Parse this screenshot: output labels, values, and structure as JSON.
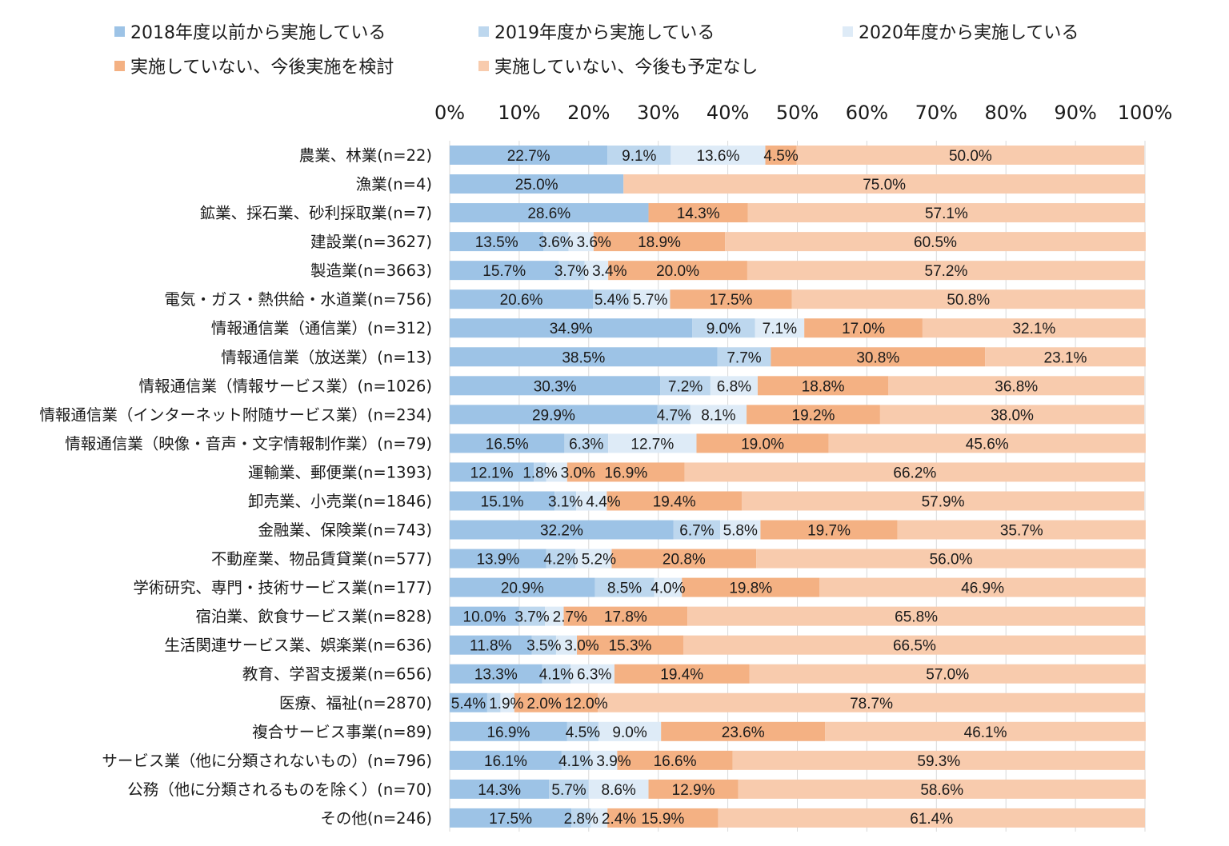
{
  "chart_data": {
    "type": "bar",
    "orientation": "horizontal",
    "stacked": true,
    "percent": true,
    "xlim": [
      0,
      100
    ],
    "grid": true,
    "legend_position": "top",
    "x_ticks": [
      "0%",
      "10%",
      "20%",
      "30%",
      "40%",
      "50%",
      "60%",
      "70%",
      "80%",
      "90%",
      "100%"
    ],
    "categories": [
      "農業、林業(n=22)",
      "漁業(n=4)",
      "鉱業、採石業、砂利採取業(n=7)",
      "建設業(n=3627)",
      "製造業(n=3663)",
      "電気・ガス・熱供給・水道業(n=756)",
      "情報通信業（通信業）(n=312)",
      "情報通信業（放送業）(n=13)",
      "情報通信業（情報サービス業）(n=1026)",
      "情報通信業（インターネット附随サービス業）(n=234)",
      "情報通信業（映像・音声・文字情報制作業）(n=79)",
      "運輸業、郵便業(n=1393)",
      "卸売業、小売業(n=1846)",
      "金融業、保険業(n=743)",
      "不動産業、物品賃貸業(n=577)",
      "学術研究、専門・技術サービス業(n=177)",
      "宿泊業、飲食サービス業(n=828)",
      "生活関連サービス業、娯楽業(n=636)",
      "教育、学習支援業(n=656)",
      "医療、福祉(n=2870)",
      "複合サービス事業(n=89)",
      "サービス業（他に分類されないもの）(n=796)",
      "公務（他に分類されるものを除く）(n=70)",
      "その他(n=246)"
    ],
    "series": [
      {
        "name": "2018年度以前から実施している",
        "color": "#9dc3e6",
        "values": [
          22.7,
          25.0,
          28.6,
          13.5,
          15.7,
          20.6,
          34.9,
          38.5,
          30.3,
          29.9,
          16.5,
          12.1,
          15.1,
          32.2,
          13.9,
          20.9,
          10.0,
          11.8,
          13.3,
          5.4,
          16.9,
          16.1,
          14.3,
          17.5
        ]
      },
      {
        "name": "2019年度から実施している",
        "color": "#bdd7ee",
        "values": [
          9.1,
          null,
          null,
          3.6,
          3.7,
          5.4,
          9.0,
          7.7,
          7.2,
          4.7,
          6.3,
          1.8,
          3.1,
          6.7,
          4.2,
          8.5,
          3.7,
          3.5,
          4.1,
          1.9,
          4.5,
          4.1,
          5.7,
          2.8
        ]
      },
      {
        "name": "2020年度から実施している",
        "color": "#deebf7",
        "values": [
          13.6,
          null,
          null,
          3.6,
          3.4,
          5.7,
          7.1,
          null,
          6.8,
          8.1,
          12.7,
          3.0,
          4.4,
          5.8,
          5.2,
          4.0,
          2.7,
          3.0,
          6.3,
          2.0,
          9.0,
          3.9,
          8.6,
          2.4
        ]
      },
      {
        "name": "実施していない、今後実施を検討",
        "color": "#f4b183",
        "values": [
          4.5,
          null,
          14.3,
          18.9,
          20.0,
          17.5,
          17.0,
          30.8,
          18.8,
          19.2,
          19.0,
          16.9,
          19.4,
          19.7,
          20.8,
          19.8,
          17.8,
          15.3,
          19.4,
          12.0,
          23.6,
          16.6,
          12.9,
          15.9
        ]
      },
      {
        "name": "実施していない、今後も予定なし",
        "color": "#f8cbad",
        "values": [
          50.0,
          75.0,
          57.1,
          60.5,
          57.2,
          50.8,
          32.1,
          23.1,
          36.8,
          38.0,
          45.6,
          66.2,
          57.9,
          35.7,
          56.0,
          46.9,
          65.8,
          66.5,
          57.0,
          78.7,
          46.1,
          59.3,
          58.6,
          61.4
        ]
      }
    ]
  }
}
